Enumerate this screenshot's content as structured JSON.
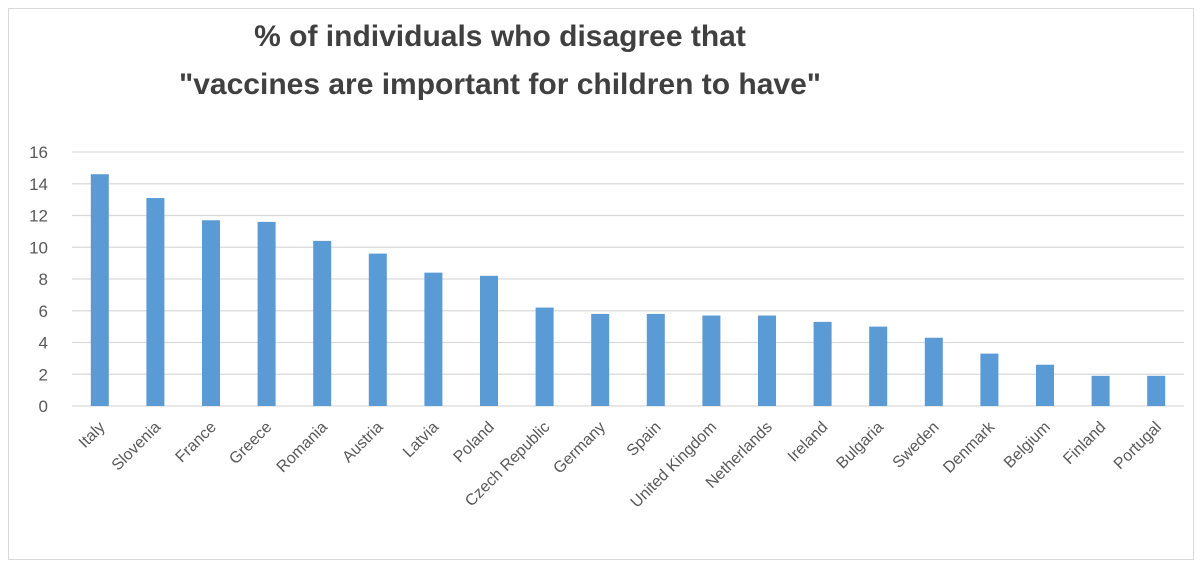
{
  "chart_data": {
    "type": "bar",
    "title_line1": "% of individuals who disagree that",
    "title_line2": "\"vaccines are important for children to have\"",
    "categories": [
      "Italy",
      "Slovenia",
      "France",
      "Greece",
      "Romania",
      "Austria",
      "Latvia",
      "Poland",
      "Czech Republic",
      "Germany",
      "Spain",
      "United Kingdom",
      "Netherlands",
      "Ireland",
      "Bulgaria",
      "Sweden",
      "Denmark",
      "Belgium",
      "Finland",
      "Portugal"
    ],
    "values": [
      14.6,
      13.1,
      11.7,
      11.6,
      10.4,
      9.6,
      8.4,
      8.2,
      6.2,
      5.8,
      5.8,
      5.7,
      5.7,
      5.3,
      5.0,
      4.3,
      3.3,
      2.6,
      1.9,
      1.9
    ],
    "yticks": [
      "0",
      "2",
      "4",
      "6",
      "8",
      "10",
      "12",
      "14",
      "16"
    ],
    "ylim": [
      0,
      16
    ],
    "grid": true,
    "legend": false,
    "bar_color": "#5b9bd5",
    "grid_color": "#d9d9d9"
  }
}
